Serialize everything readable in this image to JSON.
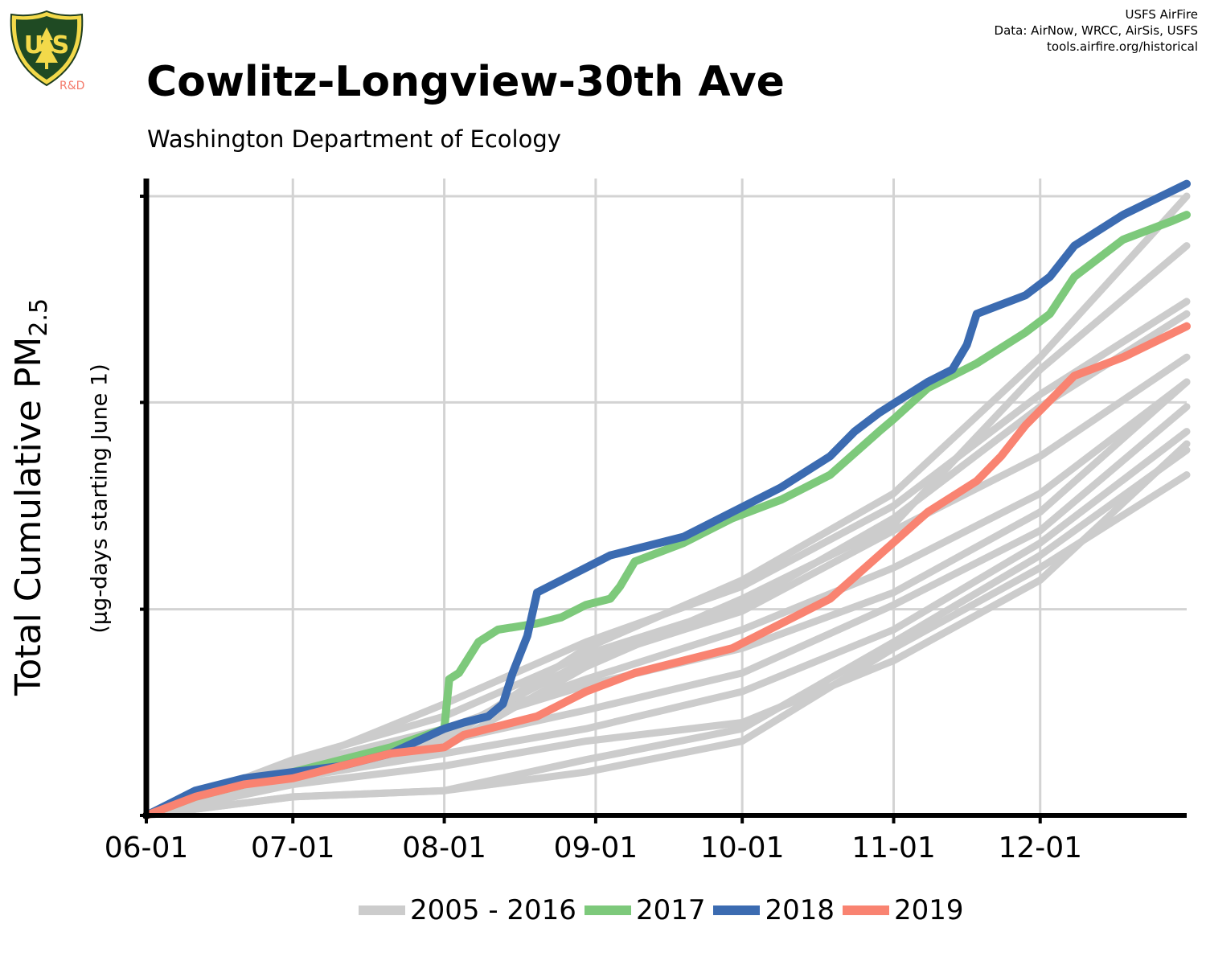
{
  "header": {
    "title": "Cowlitz-Longview-30th Ave",
    "subtitle": "Washington Department of Ecology",
    "credits": [
      "USFS AirFire",
      "Data: AirNow, WRCC, AirSis, USFS",
      "tools.airfire.org/historical"
    ],
    "logo_text": "R&D"
  },
  "colors": {
    "historical": "#cccccc",
    "y2017": "#7dc97b",
    "y2018": "#3b6bb1",
    "y2019": "#f98371",
    "grid": "#d3d3d3",
    "axis": "#000000"
  },
  "chart_data": {
    "type": "line",
    "title": "Cowlitz-Longview-30th Ave",
    "subtitle": "Washington Department of Ecology",
    "ylabel": "Total Cumulative PM2.5",
    "ylabel_sub": "(µg-days starting June 1)",
    "xlabel": "",
    "x_ticks": [
      "06-01",
      "07-01",
      "08-01",
      "09-01",
      "10-01",
      "11-01",
      "12-01"
    ],
    "x_tick_days": [
      0,
      30,
      61,
      92,
      122,
      153,
      183
    ],
    "x_range_days": [
      0,
      213
    ],
    "y_tick_labels": [],
    "y_range_relative": [
      0,
      1
    ],
    "grid": true,
    "legend_position": "bottom",
    "legend": [
      "2005 - 2016",
      "2017",
      "2018",
      "2019"
    ],
    "note": "y values are relative (0 = June 1 start, 1 = top of plotted range); the y axis has no numeric labels",
    "series": [
      {
        "name": "2017",
        "color": "#7dc97b",
        "x_days": [
          0,
          10,
          20,
          30,
          40,
          50,
          61,
          62,
          64,
          68,
          72,
          80,
          85,
          90,
          95,
          97,
          100,
          110,
          120,
          130,
          140,
          150,
          153,
          160,
          170,
          180,
          185,
          190,
          200,
          210,
          213
        ],
        "y": [
          0,
          0.03,
          0.05,
          0.07,
          0.09,
          0.11,
          0.14,
          0.22,
          0.23,
          0.28,
          0.3,
          0.31,
          0.32,
          0.34,
          0.35,
          0.37,
          0.41,
          0.44,
          0.48,
          0.51,
          0.55,
          0.62,
          0.64,
          0.69,
          0.73,
          0.78,
          0.81,
          0.87,
          0.93,
          0.96,
          0.97
        ]
      },
      {
        "name": "2018",
        "color": "#3b6bb1",
        "x_days": [
          0,
          10,
          20,
          30,
          40,
          50,
          61,
          65,
          70,
          73,
          75,
          78,
          80,
          85,
          90,
          95,
          100,
          110,
          120,
          130,
          140,
          145,
          150,
          160,
          165,
          168,
          170,
          180,
          185,
          190,
          200,
          213
        ],
        "y": [
          0,
          0.04,
          0.06,
          0.07,
          0.08,
          0.1,
          0.14,
          0.15,
          0.16,
          0.18,
          0.23,
          0.29,
          0.36,
          0.38,
          0.4,
          0.42,
          0.43,
          0.45,
          0.49,
          0.53,
          0.58,
          0.62,
          0.65,
          0.7,
          0.72,
          0.76,
          0.81,
          0.84,
          0.87,
          0.92,
          0.97,
          1.02
        ]
      },
      {
        "name": "2019",
        "color": "#f98371",
        "x_days": [
          0,
          10,
          20,
          30,
          40,
          50,
          61,
          65,
          70,
          80,
          90,
          100,
          110,
          120,
          130,
          140,
          150,
          160,
          170,
          175,
          180,
          185,
          190,
          200,
          213
        ],
        "y": [
          0,
          0.03,
          0.05,
          0.06,
          0.08,
          0.1,
          0.11,
          0.13,
          0.14,
          0.16,
          0.2,
          0.23,
          0.25,
          0.27,
          0.31,
          0.35,
          0.42,
          0.49,
          0.54,
          0.58,
          0.63,
          0.67,
          0.71,
          0.74,
          0.79
        ]
      },
      {
        "name": "2005 - 2016",
        "color": "#cccccc",
        "x_days": [
          0,
          30,
          61,
          90,
          122,
          153,
          183,
          213
        ],
        "y": [
          0,
          0.03,
          0.04,
          0.09,
          0.14,
          0.28,
          0.42,
          0.59
        ]
      },
      {
        "name": "",
        "color": "#cccccc",
        "x_days": [
          0,
          30,
          61,
          90,
          122,
          153,
          183,
          213
        ],
        "y": [
          0,
          0.03,
          0.04,
          0.07,
          0.12,
          0.27,
          0.4,
          0.55
        ]
      },
      {
        "name": "",
        "color": "#cccccc",
        "x_days": [
          0,
          30,
          61,
          90,
          122,
          153,
          183,
          213
        ],
        "y": [
          0,
          0.05,
          0.08,
          0.12,
          0.15,
          0.25,
          0.38,
          0.6
        ]
      },
      {
        "name": "",
        "color": "#cccccc",
        "x_days": [
          0,
          30,
          61,
          90,
          122,
          153,
          183,
          213
        ],
        "y": [
          0,
          0.06,
          0.1,
          0.14,
          0.2,
          0.3,
          0.44,
          0.62
        ]
      },
      {
        "name": "",
        "color": "#cccccc",
        "x_days": [
          0,
          30,
          61,
          90,
          122,
          153,
          183,
          213
        ],
        "y": [
          0,
          0.07,
          0.12,
          0.17,
          0.23,
          0.34,
          0.46,
          0.66
        ]
      },
      {
        "name": "",
        "color": "#cccccc",
        "x_days": [
          0,
          30,
          61,
          90,
          122,
          153,
          183,
          213
        ],
        "y": [
          0,
          0.07,
          0.14,
          0.21,
          0.27,
          0.36,
          0.49,
          0.7
        ]
      },
      {
        "name": "",
        "color": "#cccccc",
        "x_days": [
          0,
          30,
          61,
          90,
          122,
          153,
          183,
          213
        ],
        "y": [
          0,
          0.08,
          0.14,
          0.22,
          0.3,
          0.4,
          0.52,
          0.7
        ]
      },
      {
        "name": "",
        "color": "#cccccc",
        "x_days": [
          0,
          30,
          61,
          90,
          122,
          153,
          183,
          213
        ],
        "y": [
          0,
          0.06,
          0.13,
          0.25,
          0.33,
          0.46,
          0.58,
          0.74
        ]
      },
      {
        "name": "",
        "color": "#cccccc",
        "x_days": [
          0,
          30,
          61,
          90,
          122,
          153,
          183,
          213
        ],
        "y": [
          0,
          0.09,
          0.16,
          0.26,
          0.34,
          0.48,
          0.66,
          0.81
        ]
      },
      {
        "name": "",
        "color": "#cccccc",
        "x_days": [
          0,
          30,
          61,
          90,
          122,
          153,
          183,
          213
        ],
        "y": [
          0,
          0.08,
          0.18,
          0.28,
          0.37,
          0.5,
          0.68,
          0.83
        ]
      },
      {
        "name": "",
        "color": "#cccccc",
        "x_days": [
          0,
          30,
          61,
          90,
          122,
          153,
          183,
          213
        ],
        "y": [
          0,
          0.07,
          0.11,
          0.24,
          0.35,
          0.47,
          0.72,
          0.92
        ]
      },
      {
        "name": "",
        "color": "#cccccc",
        "x_days": [
          0,
          30,
          61,
          90,
          122,
          153,
          183,
          213
        ],
        "y": [
          0,
          0.08,
          0.12,
          0.27,
          0.38,
          0.52,
          0.74,
          1.0
        ]
      }
    ]
  }
}
